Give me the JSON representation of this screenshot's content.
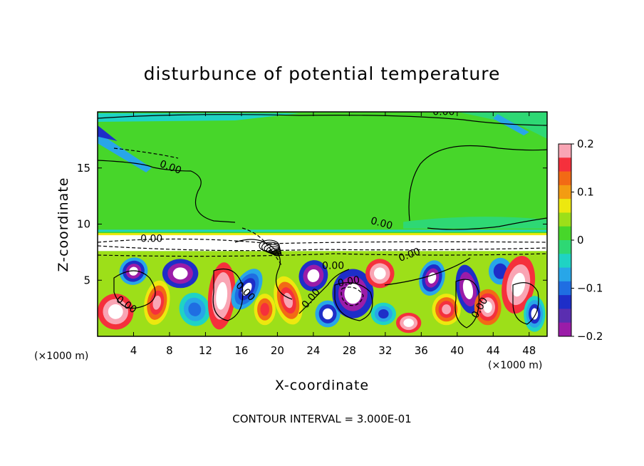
{
  "chart_data": {
    "type": "heatmap",
    "title": "disturbunce of potential temperature",
    "xlabel": "X-coordinate",
    "ylabel": "Z-coordinate",
    "x_unit": "(×1000 m)",
    "z_unit": "(×1000 m)",
    "xlim": [
      0,
      50
    ],
    "ylim": [
      0,
      20
    ],
    "x_ticks": [
      4,
      8,
      12,
      16,
      20,
      24,
      28,
      32,
      36,
      40,
      44,
      48
    ],
    "y_ticks": [
      5,
      10,
      15
    ],
    "colorbar": {
      "min": -0.2,
      "max": 0.2,
      "ticks": [
        0.2,
        0.1,
        0,
        -0.1,
        -0.2
      ],
      "tick_labels": [
        "0.2",
        "0.1",
        "0",
        "−0.1",
        "−0.2"
      ],
      "colors": [
        "#f9a5b4",
        "#f5303c",
        "#f26a15",
        "#f39c12",
        "#ede80f",
        "#9ddf19",
        "#47d62a",
        "#2ed874",
        "#1fd3c4",
        "#28a6e8",
        "#1f6ee2",
        "#1e2ec8",
        "#5a2eb0",
        "#9b1ca8"
      ]
    },
    "contour_labels": [
      "0.00",
      "0.00",
      "0.00",
      "0.00",
      "0.00",
      "0.00",
      "0.00",
      "0.00",
      "0.00",
      "0.00",
      "0.00"
    ],
    "footnote": "CONTOUR INTERVAL = 3.000E-01"
  }
}
